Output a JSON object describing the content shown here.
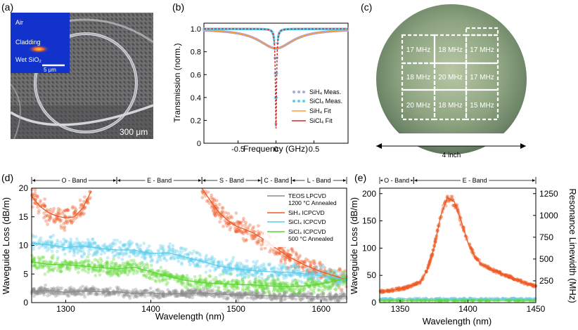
{
  "colors": {
    "teos": "#8c8c8c",
    "sih4": "#ee5a24",
    "sicl4": "#5fcdec",
    "sicl4_annealed": "#5cd630",
    "sih4_meas": "#a9a9dc",
    "sicl4_fit": "#d62728",
    "sih4_fit": "#ff9933"
  },
  "panels": {
    "a": {
      "label": "(a)",
      "inset": {
        "air": "Air",
        "cladding": "Cladding",
        "wet": "Wet SiO₂",
        "scale": "5 μm"
      },
      "scale": "300 μm"
    },
    "b": {
      "label": "(b)"
    },
    "c": {
      "label": "(c)",
      "grid": [
        [
          "17 MHz",
          "18 MHz",
          "17 MHz"
        ],
        [
          "18 MHz",
          "20 MHz",
          "17 MHz"
        ],
        [
          "20 MHz",
          "18 MHz",
          "15 MHz"
        ]
      ],
      "size": "4 inch"
    },
    "d": {
      "label": "(d)"
    },
    "e": {
      "label": "(e)"
    }
  },
  "chart_data": [
    {
      "id": "b",
      "type": "line",
      "xlabel": "Frequency (GHz)",
      "ylabel": "Transmission (norm.)",
      "xlim": [
        -0.95,
        0.95
      ],
      "ylim": [
        0,
        1.05
      ],
      "xticks": [
        "-0.5",
        "0",
        "0.5"
      ],
      "xtick_values": [
        -0.5,
        0,
        0.5
      ],
      "yticks": [
        "0",
        "0.2",
        "0.4",
        "0.6",
        "0.8",
        "1.0"
      ],
      "ytick_values": [
        0,
        0.2,
        0.4,
        0.6,
        0.8,
        1.0
      ],
      "series": [
        {
          "name": "SiH₄ Meas.",
          "style": "markers",
          "color": "#a9a9dc",
          "min": 0.83,
          "linewidth_ghz": 0.55
        },
        {
          "name": "SiCl₄ Meas.",
          "style": "markers",
          "color": "#5fcdec",
          "min": 0.13,
          "linewidth_ghz": 0.018
        },
        {
          "name": "SiH₄ Fit",
          "style": "line",
          "color": "#ff9933",
          "min": 0.83,
          "linewidth_ghz": 0.55
        },
        {
          "name": "SiCl₄ Fit",
          "style": "dashed",
          "color": "#d62728",
          "min": 0.13,
          "linewidth_ghz": 0.018
        }
      ]
    },
    {
      "id": "d",
      "type": "scatter",
      "xlabel": "Wavelength (nm)",
      "ylabel": "Waveguide Loss (dB/m)",
      "xlim": [
        1260,
        1630
      ],
      "ylim": [
        0,
        20
      ],
      "xticks": [
        "1300",
        "1400",
        "1500",
        "1600"
      ],
      "xtick_values": [
        1300,
        1400,
        1500,
        1600
      ],
      "yticks": [
        "0",
        "5",
        "10",
        "15",
        "20"
      ],
      "ytick_values": [
        0,
        5,
        10,
        15,
        20
      ],
      "bands": [
        {
          "name": "O - Band",
          "from": 1260,
          "to": 1360
        },
        {
          "name": "E - Band",
          "from": 1360,
          "to": 1460
        },
        {
          "name": "S - Band",
          "from": 1460,
          "to": 1530
        },
        {
          "name": "C - Band",
          "from": 1530,
          "to": 1565
        },
        {
          "name": "L - Band",
          "from": 1565,
          "to": 1630
        }
      ],
      "series": [
        {
          "name": "TEOS LPCVD 1200 °C Annealed",
          "color": "#8c8c8c",
          "x": [
            1260,
            1280,
            1300,
            1320,
            1340,
            1360,
            1380,
            1400,
            1420,
            1440,
            1460,
            1480,
            1500,
            1520,
            1540,
            1560,
            1580,
            1600,
            1630
          ],
          "y": [
            2.0,
            2.1,
            1.8,
            2.0,
            1.9,
            1.9,
            1.6,
            1.7,
            1.5,
            1.6,
            1.7,
            1.5,
            1.3,
            1.3,
            1.2,
            1.1,
            1.1,
            1.0,
            1.1
          ]
        },
        {
          "name": "SiH₄ ICPCVD",
          "color": "#ee5a24",
          "x": [
            1260,
            1270,
            1280,
            1290,
            1300,
            1310,
            1320,
            1330,
            1460,
            1470,
            1480,
            1490,
            1500,
            1510,
            1520,
            1530,
            1540,
            1560,
            1580,
            1600,
            1630
          ],
          "y": [
            18.6,
            16.8,
            15.7,
            15.1,
            14.8,
            15.0,
            16.5,
            19.5,
            20,
            17.8,
            15.8,
            14.4,
            13.4,
            12.8,
            12.2,
            11.3,
            10.2,
            8.2,
            6.6,
            5.4,
            4.0
          ]
        },
        {
          "name": "SiCl₄ ICPCVD",
          "color": "#5fcdec",
          "x": [
            1260,
            1280,
            1300,
            1320,
            1340,
            1360,
            1380,
            1400,
            1420,
            1440,
            1460,
            1480,
            1500,
            1520,
            1540,
            1560,
            1580,
            1600,
            1630
          ],
          "y": [
            10.4,
            10.1,
            9.6,
            9.9,
            9.5,
            9.2,
            9.2,
            8.6,
            8.7,
            8.0,
            7.2,
            6.4,
            5.9,
            5.6,
            5.4,
            5.3,
            5.1,
            4.7,
            4.0
          ]
        },
        {
          "name": "SiCl₄ ICPCVD 500 °C Annealed",
          "color": "#5cd630",
          "x": [
            1260,
            1280,
            1300,
            1320,
            1340,
            1360,
            1380,
            1400,
            1420,
            1440,
            1460,
            1480,
            1500,
            1520,
            1540,
            1560,
            1580,
            1600,
            1630
          ],
          "y": [
            7.1,
            6.7,
            6.6,
            6.4,
            6.1,
            5.9,
            6.2,
            5.4,
            4.6,
            3.9,
            3.5,
            3.3,
            3.2,
            3.1,
            2.9,
            2.8,
            2.9,
            3.3,
            4.2
          ]
        }
      ]
    },
    {
      "id": "e",
      "type": "scatter",
      "xlabel": "Wavelength (nm)",
      "ylabel": "Waveguide Loss (dB/m)",
      "ylabel_right": "Resonance Linewidth (MHz)",
      "xlim": [
        1335,
        1450
      ],
      "ylim": [
        0,
        210
      ],
      "xticks": [
        "1350",
        "1400",
        "1450"
      ],
      "xtick_values": [
        1350,
        1400,
        1450
      ],
      "yticks": [
        "0",
        "50",
        "100",
        "150",
        "200"
      ],
      "ytick_values": [
        0,
        50,
        100,
        150,
        200
      ],
      "yticks_right": [
        "250",
        "500",
        "750",
        "1000",
        "1250"
      ],
      "ytick_values_right": [
        40,
        80,
        120,
        160,
        200
      ],
      "bands": [
        {
          "name": "O - Band",
          "from": 1335,
          "to": 1360
        },
        {
          "name": "E - Band",
          "from": 1360,
          "to": 1450
        }
      ],
      "series": [
        {
          "name": "SiH₄ ICPCVD",
          "color": "#ee5a24",
          "x": [
            1335,
            1345,
            1355,
            1365,
            1370,
            1375,
            1380,
            1385,
            1390,
            1395,
            1400,
            1405,
            1410,
            1420,
            1430,
            1440,
            1450
          ],
          "y": [
            20,
            23,
            28,
            38,
            60,
            100,
            160,
            193,
            185,
            150,
            110,
            85,
            70,
            58,
            48,
            38,
            30
          ]
        },
        {
          "name": "SiCl₄ ICPCVD",
          "color": "#5fcdec",
          "x": [
            1335,
            1450
          ],
          "y": [
            7,
            7
          ]
        },
        {
          "name": "SiCl₄ ICPCVD 500 °C Annealed",
          "color": "#5cd630",
          "x": [
            1335,
            1450
          ],
          "y": [
            4,
            4
          ]
        }
      ]
    }
  ]
}
